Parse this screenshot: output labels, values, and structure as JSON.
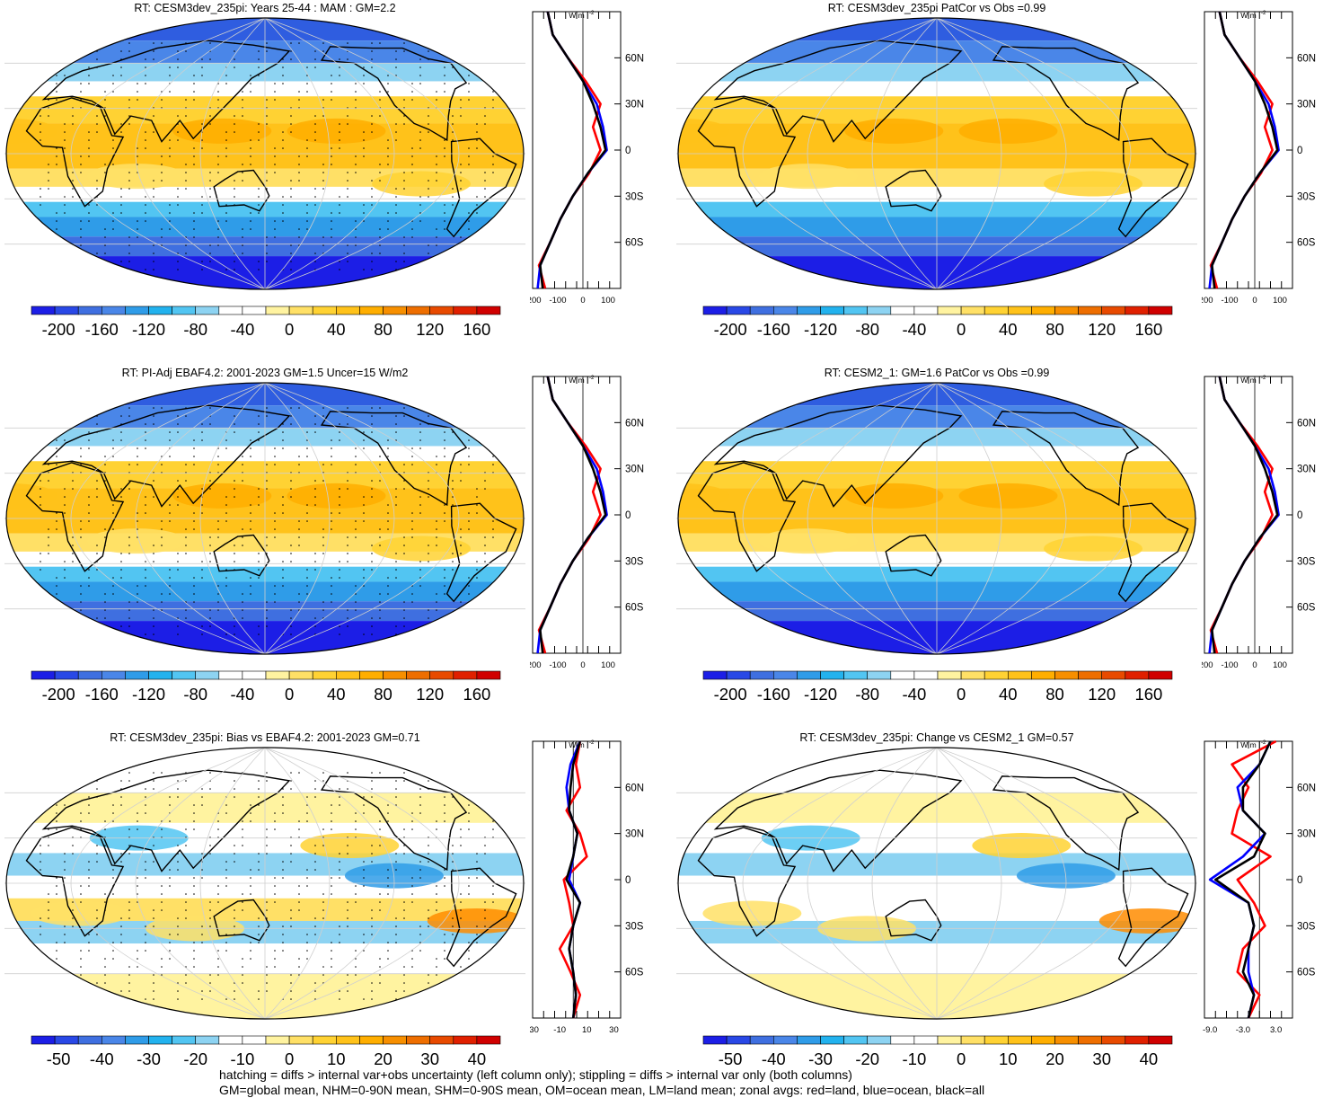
{
  "colors": {
    "scale_main": [
      "#1c1ee6",
      "#2948e6",
      "#3f6fe0",
      "#4a86e8",
      "#2f9ce8",
      "#22b2ee",
      "#52c5f2",
      "#8dd3f2",
      "#ffffff",
      "#ffffff",
      "#fff3a0",
      "#ffe066",
      "#ffd233",
      "#ffc21a",
      "#ffae00",
      "#f78f00",
      "#ee6e00",
      "#e84a00",
      "#e02000",
      "#d00000"
    ],
    "land": "#c8c8c8",
    "zonal_land": "#ff0000",
    "zonal_ocean": "#0000ff",
    "zonal_all": "#000000"
  },
  "panels": [
    {
      "title": "RT: CESM3dev_235pi: Years 25-44 : MAM : GM=2.2",
      "cbar_labels": [
        "-200",
        "-160",
        "-120",
        "-80",
        "-40",
        "0",
        "40",
        "80",
        "120",
        "160",
        "200"
      ],
      "zonal_ticks": [
        "-200",
        "-100",
        "0",
        "100"
      ],
      "zonal_unit": "W m",
      "lat_labels": [
        "60N",
        "30N",
        "0",
        "30S",
        "60S"
      ]
    },
    {
      "title": "RT: CESM3dev_235pi PatCor vs Obs =0.99",
      "cbar_labels": [
        "-200",
        "-160",
        "-120",
        "-80",
        "-40",
        "0",
        "40",
        "80",
        "120",
        "160",
        "200"
      ],
      "zonal_ticks": [
        "-200",
        "-100",
        "0",
        "100"
      ],
      "zonal_unit": "W m",
      "lat_labels": [
        "60N",
        "30N",
        "0",
        "30S",
        "60S"
      ]
    },
    {
      "title": "RT: PI-Adj EBAF4.2: 2001-2023 GM=1.5 Uncer=15 W/m2",
      "cbar_labels": [
        "-200",
        "-160",
        "-120",
        "-80",
        "-40",
        "0",
        "40",
        "80",
        "120",
        "160",
        "200"
      ],
      "zonal_ticks": [
        "-200",
        "-100",
        "0",
        "100"
      ],
      "zonal_unit": "W m",
      "lat_labels": [
        "60N",
        "30N",
        "0",
        "30S",
        "60S"
      ]
    },
    {
      "title": "RT: CESM2_1: GM=1.6 PatCor vs Obs =0.99",
      "cbar_labels": [
        "-200",
        "-160",
        "-120",
        "-80",
        "-40",
        "0",
        "40",
        "80",
        "120",
        "160",
        "200"
      ],
      "zonal_ticks": [
        "-200",
        "-100",
        "0",
        "100"
      ],
      "zonal_unit": "W m",
      "lat_labels": [
        "60N",
        "30N",
        "0",
        "30S",
        "60S"
      ]
    },
    {
      "title": "RT: CESM3dev_235pi: Bias vs EBAF4.2: 2001-2023 GM=0.71",
      "cbar_labels": [
        "-50",
        "-40",
        "-30",
        "-20",
        "-10",
        "0",
        "10",
        "20",
        "30",
        "40",
        "50"
      ],
      "zonal_ticks": [
        "-30",
        "-10",
        "10",
        "30"
      ],
      "zonal_unit": "W m",
      "lat_labels": [
        "60N",
        "30N",
        "0",
        "30S",
        "60S"
      ]
    },
    {
      "title": "RT: CESM3dev_235pi: Change vs CESM2_1 GM=0.57",
      "cbar_labels": [
        "-50",
        "-40",
        "-30",
        "-20",
        "-10",
        "0",
        "10",
        "20",
        "30",
        "40",
        "50"
      ],
      "zonal_ticks": [
        "-9.0",
        "-3.0",
        "3.0"
      ],
      "zonal_unit": "W m",
      "lat_labels": [
        "60N",
        "30N",
        "0",
        "30S",
        "60S"
      ]
    }
  ],
  "footer": {
    "line1": "hatching = diffs > internal var+obs uncertainty (left column only); stippling = diffs > internal var only (both columns)",
    "line2": "GM=global mean, NHM=0-90N mean, SHM=0-90S mean, OM=ocean mean, LM=land mean; zonal avgs: red=land, blue=ocean, black=all"
  },
  "chart_data": [
    {
      "type": "heatmap",
      "title": "RT: CESM3dev_235pi: Years 25-44 : MAM : GM=2.2",
      "colorbar_range": [
        -200,
        200
      ],
      "zonal_x_range": [
        -200,
        150
      ],
      "zonal_lat": [
        -90,
        -75,
        -60,
        -45,
        -30,
        -15,
        0,
        15,
        30,
        45,
        60,
        75,
        90
      ],
      "zonal_all": [
        -160,
        -170,
        -130,
        -90,
        -40,
        20,
        90,
        70,
        40,
        0,
        -60,
        -120,
        -140
      ],
      "zonal_land": [
        -150,
        -175,
        -130,
        -90,
        -40,
        25,
        70,
        40,
        70,
        10,
        -60,
        -120,
        -140
      ],
      "zonal_ocean": [
        -180,
        -170,
        -130,
        -90,
        -40,
        20,
        95,
        80,
        55,
        0,
        -60,
        -120,
        -140
      ]
    },
    {
      "type": "heatmap",
      "title": "RT: CESM3dev_235pi PatCor vs Obs =0.99",
      "colorbar_range": [
        -200,
        200
      ],
      "zonal_x_range": [
        -200,
        150
      ],
      "zonal_lat": [
        -90,
        -75,
        -60,
        -45,
        -30,
        -15,
        0,
        15,
        30,
        45,
        60,
        75,
        90
      ],
      "zonal_all": [
        -160,
        -170,
        -130,
        -90,
        -40,
        20,
        90,
        70,
        40,
        0,
        -60,
        -120,
        -140
      ],
      "zonal_land": [
        -150,
        -175,
        -130,
        -90,
        -40,
        25,
        70,
        40,
        70,
        10,
        -60,
        -120,
        -140
      ],
      "zonal_ocean": [
        -180,
        -170,
        -130,
        -90,
        -40,
        20,
        95,
        80,
        55,
        0,
        -60,
        -120,
        -140
      ]
    },
    {
      "type": "heatmap",
      "title": "RT: PI-Adj EBAF4.2: 2001-2023 GM=1.5 Uncer=15 W/m2",
      "colorbar_range": [
        -200,
        200
      ],
      "zonal_x_range": [
        -200,
        150
      ],
      "zonal_lat": [
        -90,
        -75,
        -60,
        -45,
        -30,
        -15,
        0,
        15,
        30,
        45,
        60,
        75,
        90
      ],
      "zonal_all": [
        -160,
        -170,
        -130,
        -90,
        -40,
        20,
        90,
        70,
        40,
        0,
        -60,
        -120,
        -140
      ],
      "zonal_land": [
        -150,
        -175,
        -130,
        -90,
        -40,
        25,
        70,
        40,
        70,
        10,
        -60,
        -120,
        -140
      ],
      "zonal_ocean": [
        -180,
        -170,
        -130,
        -90,
        -40,
        20,
        95,
        80,
        55,
        0,
        -60,
        -120,
        -140
      ]
    },
    {
      "type": "heatmap",
      "title": "RT: CESM2_1: GM=1.6 PatCor vs Obs =0.99",
      "colorbar_range": [
        -200,
        200
      ],
      "zonal_x_range": [
        -200,
        150
      ],
      "zonal_lat": [
        -90,
        -75,
        -60,
        -45,
        -30,
        -15,
        0,
        15,
        30,
        45,
        60,
        75,
        90
      ],
      "zonal_all": [
        -160,
        -170,
        -130,
        -90,
        -40,
        20,
        90,
        70,
        40,
        0,
        -60,
        -120,
        -140
      ],
      "zonal_land": [
        -150,
        -175,
        -130,
        -90,
        -40,
        25,
        70,
        40,
        70,
        10,
        -60,
        -120,
        -140
      ],
      "zonal_ocean": [
        -180,
        -170,
        -130,
        -90,
        -40,
        20,
        95,
        80,
        55,
        0,
        -60,
        -120,
        -140
      ]
    },
    {
      "type": "heatmap",
      "title": "RT: CESM3dev_235pi: Bias vs EBAF4.2: 2001-2023 GM=0.71",
      "colorbar_range": [
        -50,
        50
      ],
      "zonal_x_range": [
        -30,
        35
      ],
      "zonal_lat": [
        -90,
        -75,
        -60,
        -45,
        -30,
        -15,
        0,
        15,
        30,
        45,
        60,
        75,
        90
      ],
      "zonal_all": [
        0,
        2,
        0,
        -3,
        0,
        5,
        -5,
        0,
        3,
        -3,
        -2,
        0,
        5
      ],
      "zonal_land": [
        0,
        5,
        -2,
        -10,
        0,
        -3,
        -7,
        10,
        5,
        -5,
        5,
        2,
        5
      ],
      "zonal_ocean": [
        0,
        2,
        0,
        -3,
        0,
        5,
        -3,
        0,
        3,
        -3,
        -5,
        -2,
        5
      ]
    },
    {
      "type": "heatmap",
      "title": "RT: CESM3dev_235pi: Change vs CESM2_1 GM=0.57",
      "colorbar_range": [
        -50,
        50
      ],
      "zonal_x_range": [
        -10,
        6
      ],
      "zonal_lat": [
        -90,
        -75,
        -60,
        -45,
        -30,
        -15,
        0,
        15,
        30,
        45,
        60,
        75,
        90
      ],
      "zonal_all": [
        -2,
        -1,
        -3,
        -2,
        -1,
        -2,
        -8,
        -1,
        1,
        -3,
        -3,
        0,
        2
      ],
      "zonal_land": [
        -2,
        0,
        -4,
        -3,
        1,
        -1,
        -4,
        2,
        -5,
        -4,
        -2,
        -5,
        3
      ],
      "zonal_ocean": [
        -2,
        -1,
        -2,
        -2,
        -1,
        -2,
        -9,
        -3,
        1,
        -3,
        -4,
        0,
        2
      ]
    }
  ]
}
